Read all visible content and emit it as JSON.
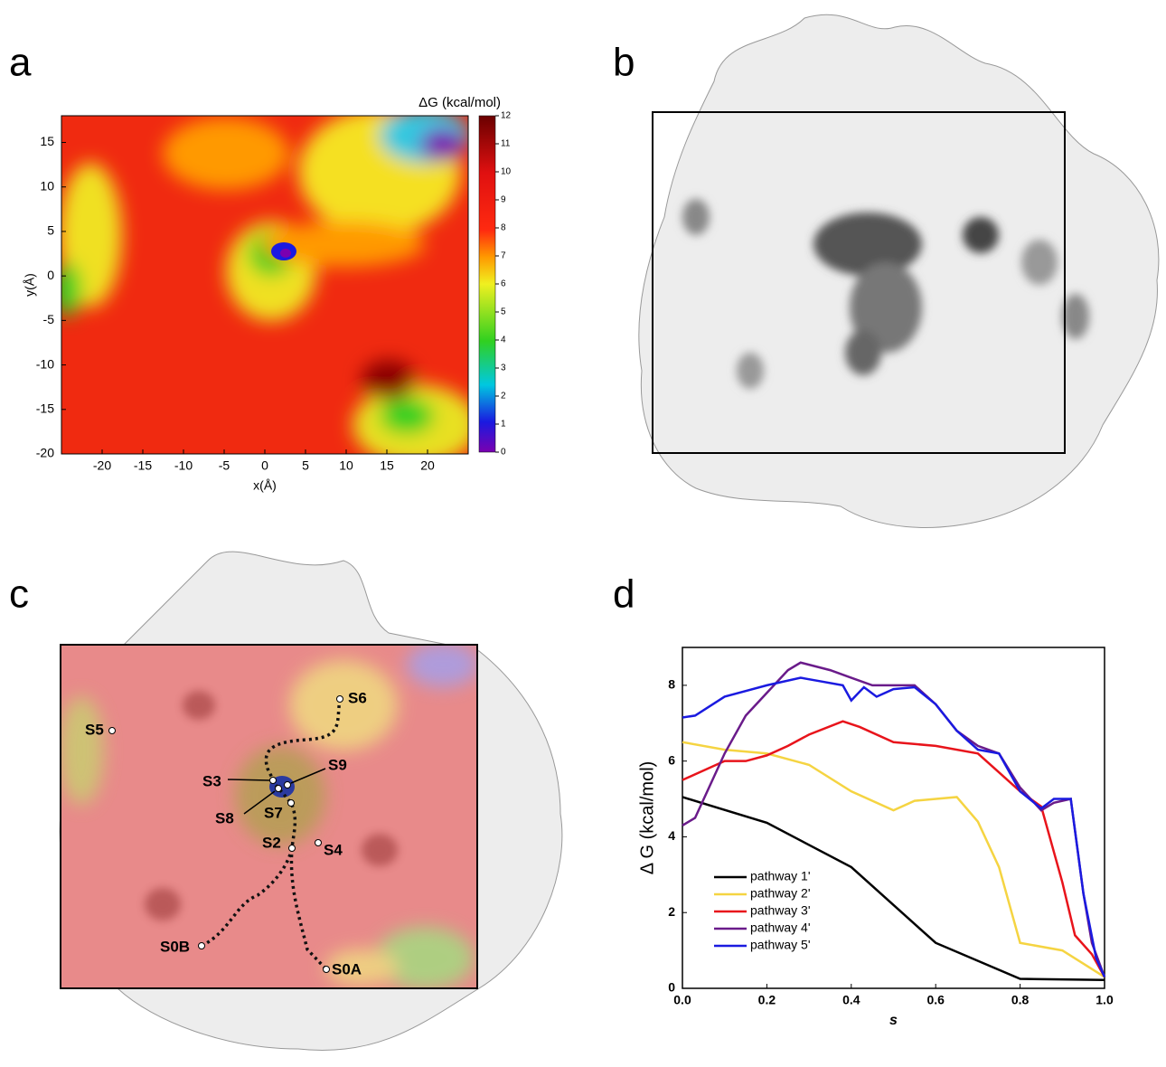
{
  "figure": {
    "panel_labels": [
      "a",
      "b",
      "c",
      "d"
    ]
  },
  "panel_c": {
    "site_labels": [
      "S6",
      "S5",
      "S3",
      "S9",
      "S8",
      "S7",
      "S2",
      "S4",
      "S0B",
      "S0A"
    ]
  },
  "chart_data": [
    {
      "type": "contour",
      "xlabel": "x(Å)",
      "ylabel": "y(Å)",
      "xlim": [
        -25,
        25
      ],
      "ylim": [
        -20,
        18
      ],
      "xticks": [
        -20,
        -15,
        -10,
        -5,
        0,
        5,
        10,
        15,
        20
      ],
      "yticks": [
        -20,
        -15,
        -10,
        -5,
        0,
        5,
        10,
        15
      ],
      "colorbar": {
        "label": "ΔG (kcal/mol)",
        "lim": [
          0,
          12
        ],
        "ticks": [
          0,
          1,
          2,
          3,
          4,
          5,
          6,
          7,
          8,
          9,
          10,
          11,
          12
        ]
      }
    },
    {
      "type": "line",
      "xlabel": "s",
      "ylabel": "Δ G (kcal/mol)",
      "xlim": [
        0,
        1
      ],
      "ylim": [
        0,
        9
      ],
      "xticks": [
        {
          "value": 0,
          "label": "0.0"
        },
        0.2,
        0.4,
        0.6,
        0.8,
        {
          "value": 1,
          "label": "1.0"
        }
      ],
      "yticks": [
        0,
        2,
        4,
        6,
        8
      ],
      "legend": "lower-left",
      "series": [
        {
          "name": "pathway 1'",
          "color": "#000000",
          "x": [
            0,
            0.2,
            0.4,
            0.6,
            0.8,
            1.0
          ],
          "values": [
            5.05,
            4.37,
            3.2,
            1.2,
            0.25,
            0.22
          ]
        },
        {
          "name": "pathway 2'",
          "color": "#f5d442",
          "x": [
            0,
            0.1,
            0.2,
            0.3,
            0.4,
            0.5,
            0.55,
            0.65,
            0.7,
            0.75,
            0.8,
            0.9,
            1.0
          ],
          "values": [
            6.5,
            6.3,
            6.2,
            5.9,
            5.2,
            4.7,
            4.95,
            5.05,
            4.4,
            3.2,
            1.2,
            1.0,
            0.3
          ]
        },
        {
          "name": "pathway 3'",
          "color": "#e8141b",
          "x": [
            0,
            0.05,
            0.1,
            0.15,
            0.2,
            0.25,
            0.3,
            0.38,
            0.42,
            0.5,
            0.6,
            0.7,
            0.75,
            0.8,
            0.85,
            0.9,
            0.93,
            0.97,
            1.0
          ],
          "values": [
            5.5,
            5.75,
            6.0,
            6.0,
            6.15,
            6.4,
            6.7,
            7.05,
            6.9,
            6.5,
            6.4,
            6.2,
            5.7,
            5.2,
            4.8,
            2.8,
            1.4,
            0.9,
            0.3
          ]
        },
        {
          "name": "pathway 4'",
          "color": "#6a1b8a",
          "x": [
            0,
            0.03,
            0.1,
            0.15,
            0.2,
            0.25,
            0.28,
            0.35,
            0.4,
            0.45,
            0.55,
            0.6,
            0.65,
            0.7,
            0.75,
            0.8,
            0.85,
            0.88,
            0.92,
            0.95,
            0.97,
            1.0
          ],
          "values": [
            4.3,
            4.5,
            6.2,
            7.2,
            7.8,
            8.4,
            8.6,
            8.4,
            8.2,
            8.0,
            8.0,
            7.5,
            6.8,
            6.4,
            6.2,
            5.3,
            4.7,
            4.9,
            5.0,
            2.5,
            1.2,
            0.3
          ]
        },
        {
          "name": "pathway 5'",
          "color": "#1a1ae0",
          "x": [
            0,
            0.03,
            0.1,
            0.2,
            0.28,
            0.33,
            0.38,
            0.4,
            0.43,
            0.46,
            0.5,
            0.55,
            0.6,
            0.65,
            0.7,
            0.75,
            0.8,
            0.85,
            0.88,
            0.92,
            0.95,
            0.98,
            1.0
          ],
          "values": [
            7.15,
            7.2,
            7.7,
            8.0,
            8.2,
            8.1,
            8.0,
            7.6,
            7.95,
            7.7,
            7.9,
            7.95,
            7.5,
            6.8,
            6.3,
            6.2,
            5.2,
            4.75,
            5.0,
            5.0,
            2.5,
            0.8,
            0.3
          ]
        }
      ]
    }
  ]
}
